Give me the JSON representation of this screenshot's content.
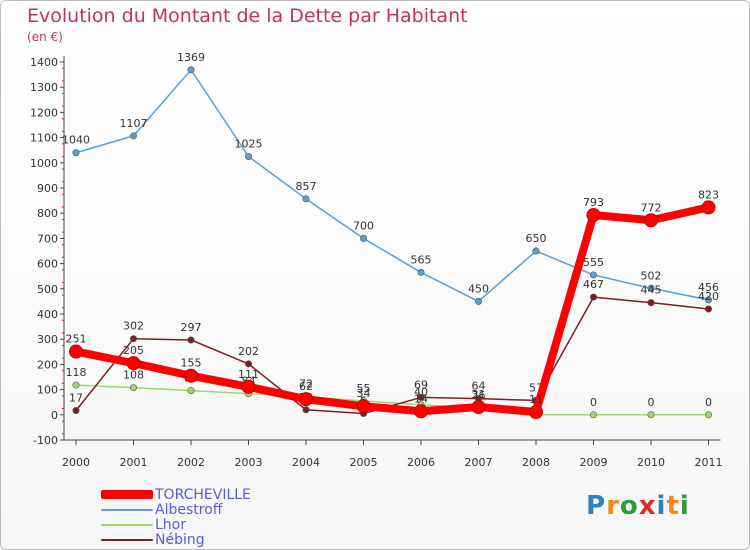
{
  "title": "Evolution du Montant de la Dette par Habitant",
  "subtitle": "(en €)",
  "logo": "Proxiti",
  "chart_data": {
    "type": "line",
    "x": [
      "2000",
      "2001",
      "2002",
      "2003",
      "2004",
      "2005",
      "2006",
      "2007",
      "2008",
      "2009",
      "2010",
      "2011"
    ],
    "ylim": [
      -100,
      1400
    ],
    "yticks": [
      -100,
      0,
      100,
      200,
      300,
      400,
      500,
      600,
      700,
      800,
      900,
      1000,
      1100,
      1200,
      1300,
      1400
    ],
    "grid": false,
    "legend_position": "bottom-left",
    "series": [
      {
        "name": "Albestroff",
        "color": "#5a9fd4",
        "values": [
          1040,
          1107,
          1369,
          1025,
          857,
          700,
          565,
          450,
          650,
          555,
          502,
          456
        ]
      },
      {
        "name": "Lhor",
        "color": "#9ed86a",
        "values": [
          118,
          108,
          96,
          84,
          72,
          55,
          40,
          26,
          0,
          0,
          0,
          0
        ]
      },
      {
        "name": "Nébing",
        "color": "#7a1f1f",
        "values": [
          17,
          302,
          297,
          202,
          20,
          5,
          69,
          64,
          57,
          467,
          445,
          420
        ]
      },
      {
        "name": "TORCHEVILLE",
        "color": "#ff0000",
        "values": [
          251,
          205,
          155,
          111,
          62,
          34,
          14,
          31,
          11,
          793,
          772,
          823
        ]
      }
    ]
  }
}
